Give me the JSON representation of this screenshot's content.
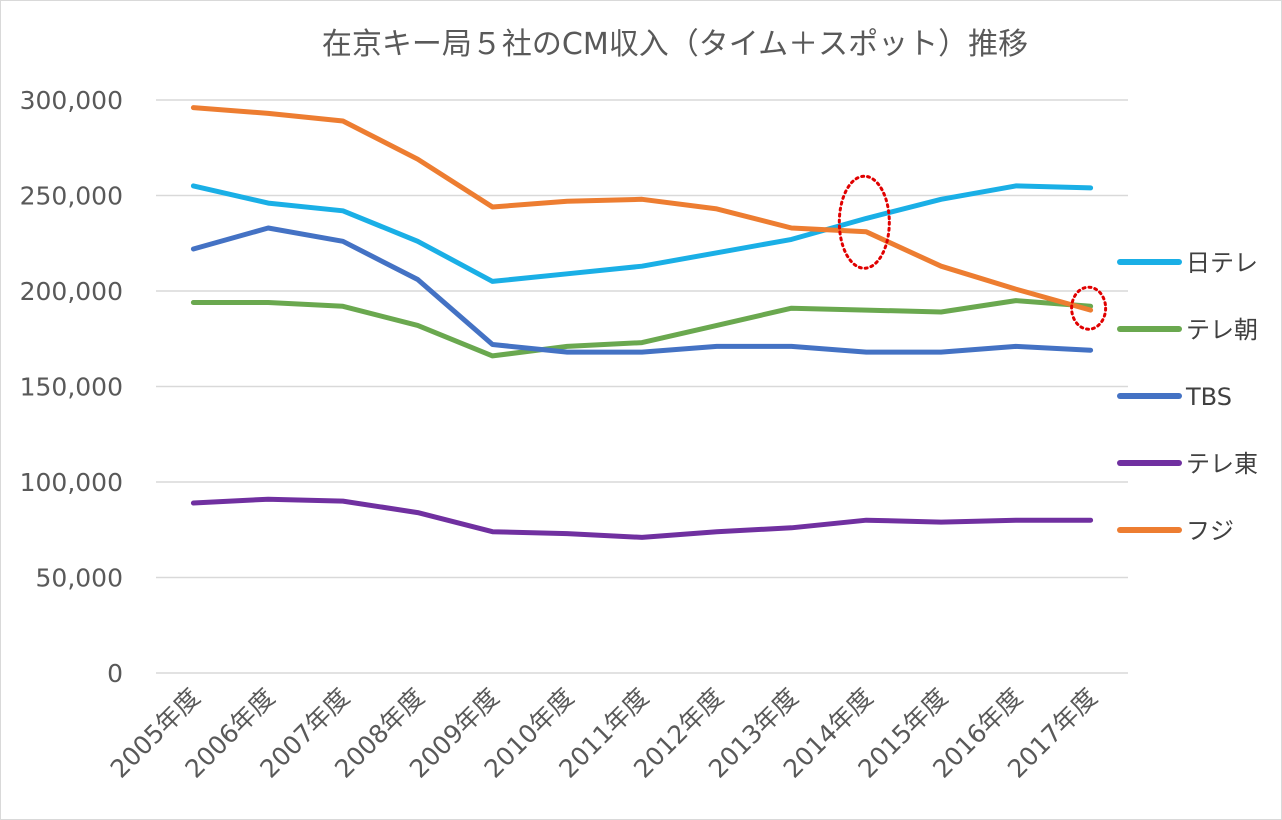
{
  "chart_data": {
    "type": "line",
    "title": "在京キー局５社のCM収入（タイム＋スポット）推移",
    "xlabel": "",
    "ylabel": "",
    "ylim": [
      0,
      300000
    ],
    "y_ticks": [
      "0",
      "50,000",
      "100,000",
      "150,000",
      "200,000",
      "250,000",
      "300,000"
    ],
    "categories": [
      "2005年度",
      "2006年度",
      "2007年度",
      "2008年度",
      "2009年度",
      "2010年度",
      "2011年度",
      "2012年度",
      "2013年度",
      "2014年度",
      "2015年度",
      "2016年度",
      "2017年度"
    ],
    "grid": true,
    "legend_position": "right",
    "series": [
      {
        "name": "日テレ",
        "color": "#1aafe6",
        "values": [
          255000,
          246000,
          242000,
          226000,
          205000,
          209000,
          213000,
          220000,
          227000,
          238000,
          248000,
          255000,
          254000
        ]
      },
      {
        "name": "テレ朝",
        "color": "#6aa84f",
        "values": [
          194000,
          194000,
          192000,
          182000,
          166000,
          171000,
          173000,
          182000,
          191000,
          190000,
          189000,
          195000,
          192000
        ]
      },
      {
        "name": "TBS",
        "color": "#4472c4",
        "values": [
          222000,
          233000,
          226000,
          206000,
          172000,
          168000,
          168000,
          171000,
          171000,
          168000,
          168000,
          171000,
          169000
        ]
      },
      {
        "name": "テレ東",
        "color": "#7030a0",
        "values": [
          89000,
          91000,
          90000,
          84000,
          74000,
          73000,
          71000,
          74000,
          76000,
          80000,
          79000,
          80000,
          80000
        ]
      },
      {
        "name": "フジ",
        "color": "#ed7d31",
        "values": [
          296000,
          293000,
          289000,
          269000,
          244000,
          247000,
          248000,
          243000,
          233000,
          231000,
          213000,
          201000,
          190000
        ]
      }
    ],
    "annotations": [
      {
        "type": "dotted-ellipse",
        "color": "#e00000",
        "category": "2014年度",
        "value": 236000
      },
      {
        "type": "dotted-ellipse",
        "color": "#e00000",
        "category": "2017年度",
        "value": 191000
      }
    ]
  }
}
